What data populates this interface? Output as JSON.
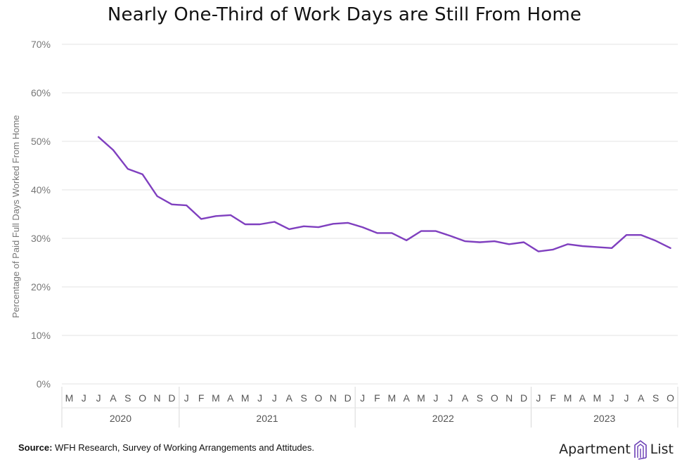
{
  "title": "Nearly One-Third of Work Days are Still From Home",
  "source": {
    "label": "Source:",
    "text": "WFH Research, Survey of Working Arrangements and Attitudes."
  },
  "logo": {
    "word1": "Apartment",
    "word2": "List"
  },
  "colors": {
    "line": "#7f3fbf",
    "grid": "#e3e3e3"
  },
  "chart_data": {
    "type": "line",
    "title": "Nearly One-Third of Work Days are Still From Home",
    "ylabel": "Percentage of Paid Full Days Worked From Home",
    "xlabel": "",
    "ylim": [
      0,
      70
    ],
    "y_ticks": [
      "0%",
      "10%",
      "20%",
      "30%",
      "40%",
      "50%",
      "60%",
      "70%"
    ],
    "grid": true,
    "months": [
      "M",
      "J",
      "J",
      "A",
      "S",
      "O",
      "N",
      "D",
      "J",
      "F",
      "M",
      "A",
      "M",
      "J",
      "J",
      "A",
      "S",
      "O",
      "N",
      "D",
      "J",
      "F",
      "M",
      "A",
      "M",
      "J",
      "J",
      "A",
      "S",
      "O",
      "N",
      "D",
      "J",
      "F",
      "M",
      "A",
      "M",
      "J",
      "J",
      "A",
      "S",
      "O"
    ],
    "years": [
      {
        "label": "2020",
        "months": 8
      },
      {
        "label": "2021",
        "months": 12
      },
      {
        "label": "2022",
        "months": 12
      },
      {
        "label": "2023",
        "months": 10
      }
    ],
    "series": [
      {
        "start_index": 2,
        "values": [
          50.9,
          48.2,
          44.3,
          43.2,
          38.7,
          37.0,
          36.8,
          34.0,
          34.6,
          34.8,
          32.9,
          32.9,
          33.4,
          31.9,
          32.5,
          32.3,
          33.0,
          33.2,
          32.3,
          31.1,
          31.1,
          29.6,
          31.5,
          31.5,
          30.5,
          29.4,
          29.2,
          29.4,
          28.8,
          29.2,
          27.3,
          27.7,
          28.8,
          28.4,
          28.2,
          28.0,
          30.7,
          30.7,
          29.5,
          28.0
        ]
      }
    ]
  }
}
